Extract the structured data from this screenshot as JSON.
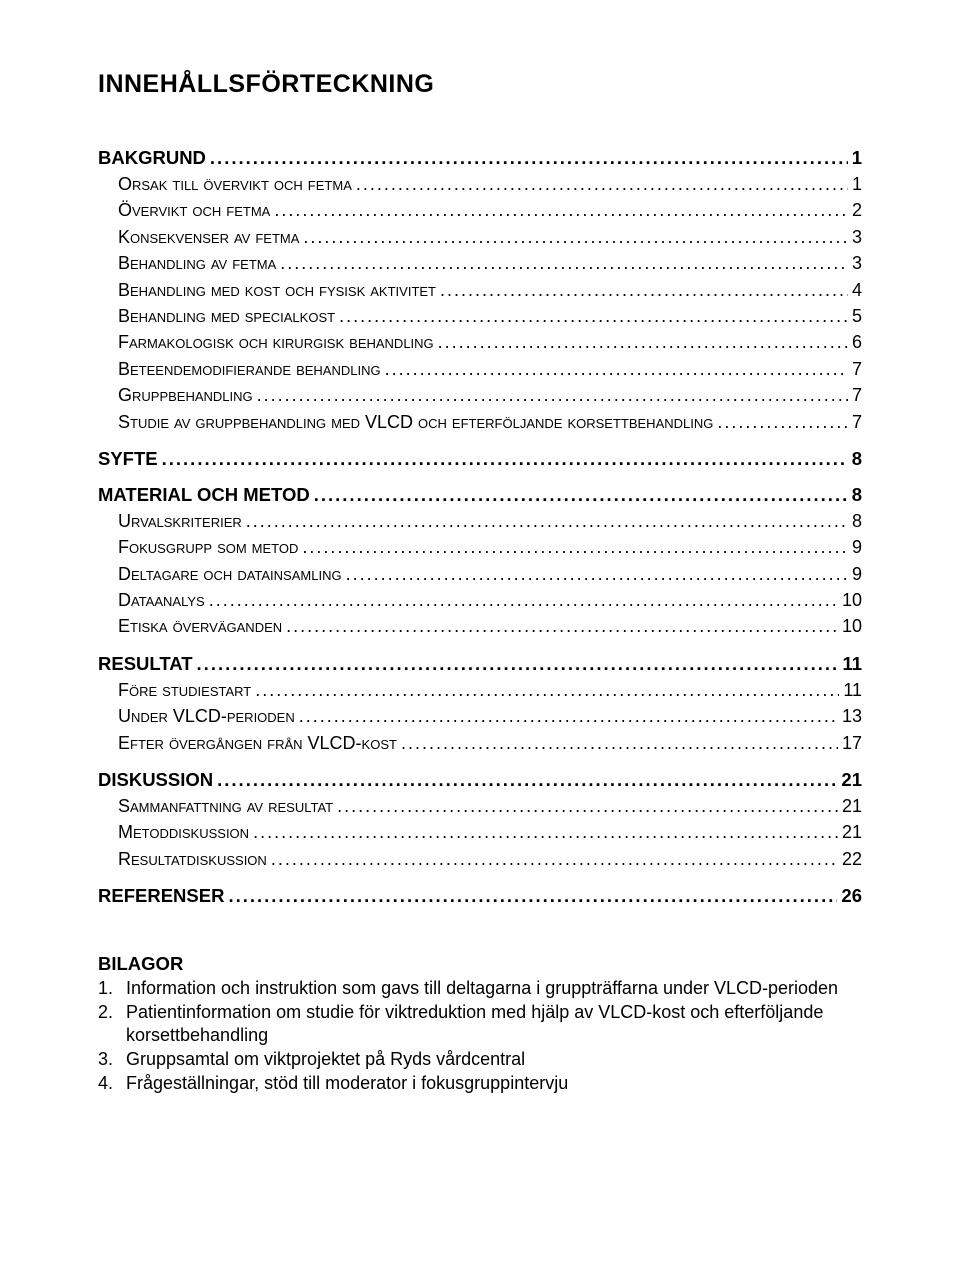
{
  "title": "INNEHÅLLSFÖRTECKNING",
  "toc": [
    {
      "level": 1,
      "label": "BAKGRUND",
      "page": "1"
    },
    {
      "level": 2,
      "label": "Orsak till övervikt och fetma",
      "page": "1"
    },
    {
      "level": 2,
      "label": "Övervikt och fetma",
      "page": "2"
    },
    {
      "level": 2,
      "label": "Konsekvenser av fetma",
      "page": "3"
    },
    {
      "level": 2,
      "label": "Behandling av fetma",
      "page": "3"
    },
    {
      "level": 2,
      "label": "Behandling med kost och fysisk aktivitet",
      "page": "4"
    },
    {
      "level": 2,
      "label": "Behandling med specialkost",
      "page": "5"
    },
    {
      "level": 2,
      "label": "Farmakologisk och kirurgisk behandling",
      "page": "6"
    },
    {
      "level": 2,
      "label": "Beteendemodifierande behandling",
      "page": "7"
    },
    {
      "level": 2,
      "label": "Gruppbehandling",
      "page": "7"
    },
    {
      "level": 2,
      "label": "Studie av gruppbehandling med VLCD och efterföljande korsettbehandling",
      "page": "7"
    },
    {
      "level": 1,
      "label": "SYFTE",
      "page": "8"
    },
    {
      "level": 1,
      "label": "MATERIAL OCH METOD",
      "page": "8"
    },
    {
      "level": 2,
      "label": "Urvalskriterier",
      "page": "8"
    },
    {
      "level": 2,
      "label": "Fokusgrupp som metod",
      "page": "9"
    },
    {
      "level": 2,
      "label": "Deltagare och datainsamling",
      "page": "9"
    },
    {
      "level": 2,
      "label": "Dataanalys",
      "page": "10"
    },
    {
      "level": 2,
      "label": "Etiska överväganden",
      "page": "10"
    },
    {
      "level": 1,
      "label": "RESULTAT",
      "page": "11"
    },
    {
      "level": 2,
      "label": "Före studiestart",
      "page": "11"
    },
    {
      "level": 2,
      "label": "Under VLCD-perioden",
      "page": "13"
    },
    {
      "level": 2,
      "label": "Efter övergången från VLCD-kost",
      "page": "17"
    },
    {
      "level": 1,
      "label": "DISKUSSION",
      "page": "21"
    },
    {
      "level": 2,
      "label": "Sammanfattning av resultat",
      "page": "21"
    },
    {
      "level": 2,
      "label": "Metoddiskussion",
      "page": "21"
    },
    {
      "level": 2,
      "label": "Resultatdiskussion",
      "page": "22"
    },
    {
      "level": 1,
      "label": "REFERENSER",
      "page": "26"
    }
  ],
  "bilagor": {
    "heading": "BILAGOR",
    "items": [
      {
        "num": "1.",
        "text": "Information och instruktion som gavs till deltagarna i gruppträffarna under VLCD-perioden"
      },
      {
        "num": "2.",
        "text": "Patientinformation om studie för viktreduktion med hjälp av VLCD-kost och efterföljande korsettbehandling"
      },
      {
        "num": "3.",
        "text": "Gruppsamtal om viktprojektet på Ryds vårdcentral"
      },
      {
        "num": "4.",
        "text": "Frågeställningar, stöd till moderator i fokusgruppintervju"
      }
    ]
  }
}
